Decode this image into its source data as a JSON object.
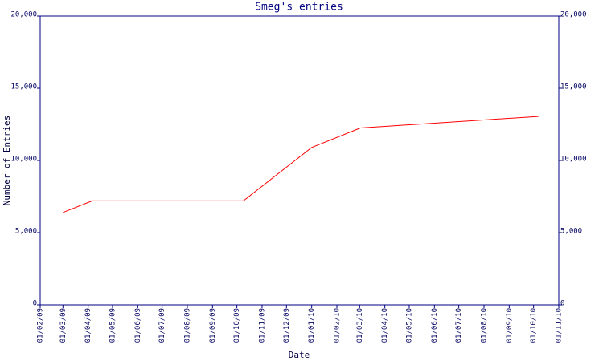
{
  "chart_data": {
    "type": "line",
    "title": "Smeg's entries",
    "x_label": "Date",
    "y_label": "Number of Entries",
    "x": [
      "01/03/09",
      "06/04/09",
      "09/10/09",
      "01/01/10",
      "02/03/10",
      "07/10/10"
    ],
    "series": [
      {
        "name": "Smeg",
        "color": "#ff0000",
        "values": [
          6400,
          7200,
          7200,
          10900,
          12250,
          13050
        ]
      }
    ],
    "xlim": [
      "01/02/09",
      "01/11/10"
    ],
    "xticks": [
      "01/02/09",
      "01/03/09",
      "01/04/09",
      "01/05/09",
      "01/06/09",
      "01/07/09",
      "01/08/09",
      "01/09/09",
      "01/10/09",
      "01/11/09",
      "01/12/09",
      "01/01/10",
      "01/02/10",
      "01/03/10",
      "01/04/10",
      "01/05/10",
      "01/06/10",
      "01/07/10",
      "01/08/10",
      "01/09/10",
      "01/10/10",
      "01/11/10"
    ],
    "ylim": [
      0,
      20000
    ],
    "yticks": [
      0,
      {
        "value": 5000,
        "label": "5,000"
      },
      {
        "value": 10000,
        "label": "10,000"
      },
      {
        "value": 15000,
        "label": "15,000"
      },
      {
        "value": 20000,
        "label": "20,000"
      }
    ],
    "axis_color": "#000080"
  }
}
